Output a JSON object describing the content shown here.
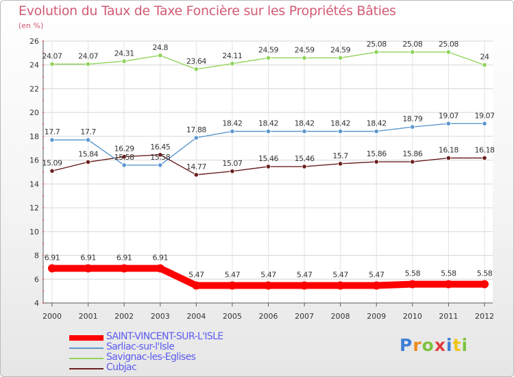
{
  "title": "Evolution du Taux de Taxe Foncière sur les Propriétés Bâties",
  "subtitle": "(en %)",
  "logo": {
    "letters": [
      "P",
      "r",
      "o",
      "x",
      "i",
      "t",
      "i"
    ],
    "colors": [
      "#3f7fd6",
      "#f08a1c",
      "#7cc23d",
      "#e03c3c",
      "#3f7fd6",
      "#f0c419",
      "#7cc23d"
    ]
  },
  "chart_data": {
    "type": "line",
    "x": [
      "2000",
      "2001",
      "2002",
      "2003",
      "2004",
      "2005",
      "2006",
      "2007",
      "2008",
      "2009",
      "2010",
      "2011",
      "2012"
    ],
    "ylim": [
      4,
      26
    ],
    "yticks": [
      "4",
      "6",
      "8",
      "10",
      "12",
      "14",
      "16",
      "18",
      "20",
      "22",
      "24",
      "26"
    ],
    "grid": true,
    "legend_position": "bottom-left",
    "series": [
      {
        "name": "SAINT-VINCENT-SUR-L'ISLE",
        "color": "#ff0000",
        "values": [
          6.91,
          6.91,
          6.91,
          6.91,
          5.47,
          5.47,
          5.47,
          5.47,
          5.47,
          5.47,
          5.58,
          5.58,
          5.58
        ],
        "labels": [
          "6.91",
          "6.91",
          "6.91",
          "6.91",
          "5.47",
          "5.47",
          "5.47",
          "5.47",
          "5.47",
          "5.47",
          "5.58",
          "5.58",
          "5.58"
        ]
      },
      {
        "name": "Sarliac-sur-l'Isle",
        "color": "#5b97cf",
        "values": [
          17.7,
          17.7,
          15.58,
          15.58,
          17.88,
          18.42,
          18.42,
          18.42,
          18.42,
          18.42,
          18.79,
          19.07,
          19.07
        ],
        "labels": [
          "17.7",
          "17.7",
          "15.58",
          "15.58",
          "17.88",
          "18.42",
          "18.42",
          "18.42",
          "18.42",
          "18.42",
          "18.79",
          "19.07",
          "19.07"
        ]
      },
      {
        "name": "Savignac-les-Eglises",
        "color": "#8fd45a",
        "values": [
          24.07,
          24.07,
          24.31,
          24.8,
          23.64,
          24.11,
          24.59,
          24.59,
          24.59,
          25.08,
          25.08,
          25.08,
          24.0
        ],
        "labels": [
          "24.07",
          "24.07",
          "24.31",
          "24.8",
          "23.64",
          "24.11",
          "24.59",
          "24.59",
          "24.59",
          "25.08",
          "25.08",
          "25.08",
          "24"
        ]
      },
      {
        "name": "Cubjac",
        "color": "#6b1f1f",
        "values": [
          15.09,
          15.84,
          16.29,
          16.45,
          14.77,
          15.07,
          15.46,
          15.46,
          15.7,
          15.86,
          15.86,
          16.18,
          16.18
        ],
        "labels": [
          "15.09",
          "15.84",
          "16.29",
          "16.45",
          "14.77",
          "15.07",
          "15.46",
          "15.46",
          "15.7",
          "15.86",
          "15.86",
          "16.18",
          "16.18"
        ]
      }
    ]
  }
}
